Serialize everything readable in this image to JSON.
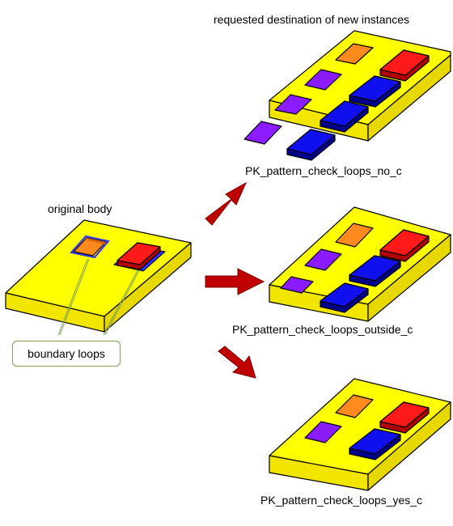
{
  "labels": {
    "destination": "requested destination of new instances",
    "original": "original body",
    "callout": "boundary loops",
    "no_c": "PK_pattern_check_loops_no_c",
    "outside_c": "PK_pattern_check_loops_outside_c",
    "yes_c": "PK_pattern_check_loops_yes_c"
  },
  "colors": {
    "body_face": "#ffff00",
    "body_side": "#f2e600",
    "arrow": "#c00000",
    "orange": "#ff8a1e",
    "red": "#ff1a1a",
    "violet": "#8a1cff",
    "blue": "#1010ee",
    "callout_line": "#7fa05a"
  }
}
